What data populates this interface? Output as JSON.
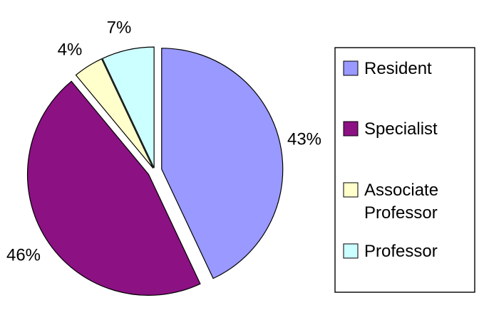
{
  "chart_data": {
    "type": "pie",
    "categories": [
      "Resident",
      "Specialist",
      "Associate Professor",
      "Professor"
    ],
    "values": [
      43,
      46,
      4,
      7
    ],
    "labels": [
      "43%",
      "46%",
      "4%",
      "7%"
    ],
    "colors": [
      "#9999ff",
      "#8c1183",
      "#ffffcc",
      "#ccffff"
    ],
    "exploded": true,
    "start_angle_deg": 0,
    "direction": "clockwise",
    "title": "",
    "legend": {
      "placement": "right",
      "entries": [
        {
          "lines": [
            "Resident"
          ]
        },
        {
          "lines": [
            "Specialist"
          ]
        },
        {
          "lines": [
            "Associate",
            "Professor"
          ]
        },
        {
          "lines": [
            "Professor"
          ]
        }
      ]
    }
  }
}
